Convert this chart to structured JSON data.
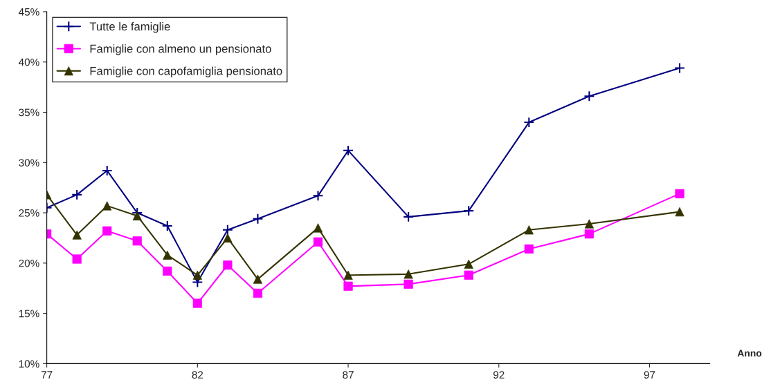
{
  "chart_data": {
    "type": "line",
    "xlabel": "Anno",
    "x": [
      77,
      78,
      79,
      80,
      81,
      82,
      83,
      84,
      86,
      87,
      89,
      91,
      93,
      95,
      98
    ],
    "series": [
      {
        "name": "Tutte le famiglie",
        "color": "#000080",
        "marker": "cross",
        "values": [
          25.5,
          26.8,
          29.2,
          25.0,
          23.7,
          18.1,
          23.3,
          24.4,
          26.7,
          31.2,
          24.6,
          25.2,
          34.0,
          36.6,
          39.4
        ]
      },
      {
        "name": "Famiglie con almeno un pensionato",
        "color": "#ff00ff",
        "marker": "square",
        "values": [
          22.9,
          20.4,
          23.2,
          22.2,
          19.2,
          16.0,
          19.8,
          17.0,
          22.1,
          17.7,
          17.9,
          18.8,
          21.4,
          22.9,
          26.9
        ]
      },
      {
        "name": "Famiglie con capofamiglia pensionato",
        "color": "#333300",
        "marker": "triangle",
        "values": [
          26.8,
          22.8,
          25.7,
          24.7,
          20.8,
          18.8,
          22.5,
          18.4,
          23.5,
          18.8,
          18.9,
          19.9,
          23.3,
          23.9,
          25.1
        ]
      }
    ],
    "xlim": [
      77,
      99
    ],
    "xticks": [
      77,
      82,
      87,
      92,
      97
    ],
    "ylim": [
      10,
      45
    ],
    "yticks": [
      {
        "value": 10,
        "label": "10%"
      },
      {
        "value": 15,
        "label": "15%"
      },
      {
        "value": 20,
        "label": "20%"
      },
      {
        "value": 25,
        "label": "25%"
      },
      {
        "value": 30,
        "label": "30%"
      },
      {
        "value": 35,
        "label": "35%"
      },
      {
        "value": 40,
        "label": "40%"
      },
      {
        "value": 45,
        "label": "45%"
      }
    ],
    "grid": false,
    "legend": "top left",
    "line_style": "solid"
  }
}
